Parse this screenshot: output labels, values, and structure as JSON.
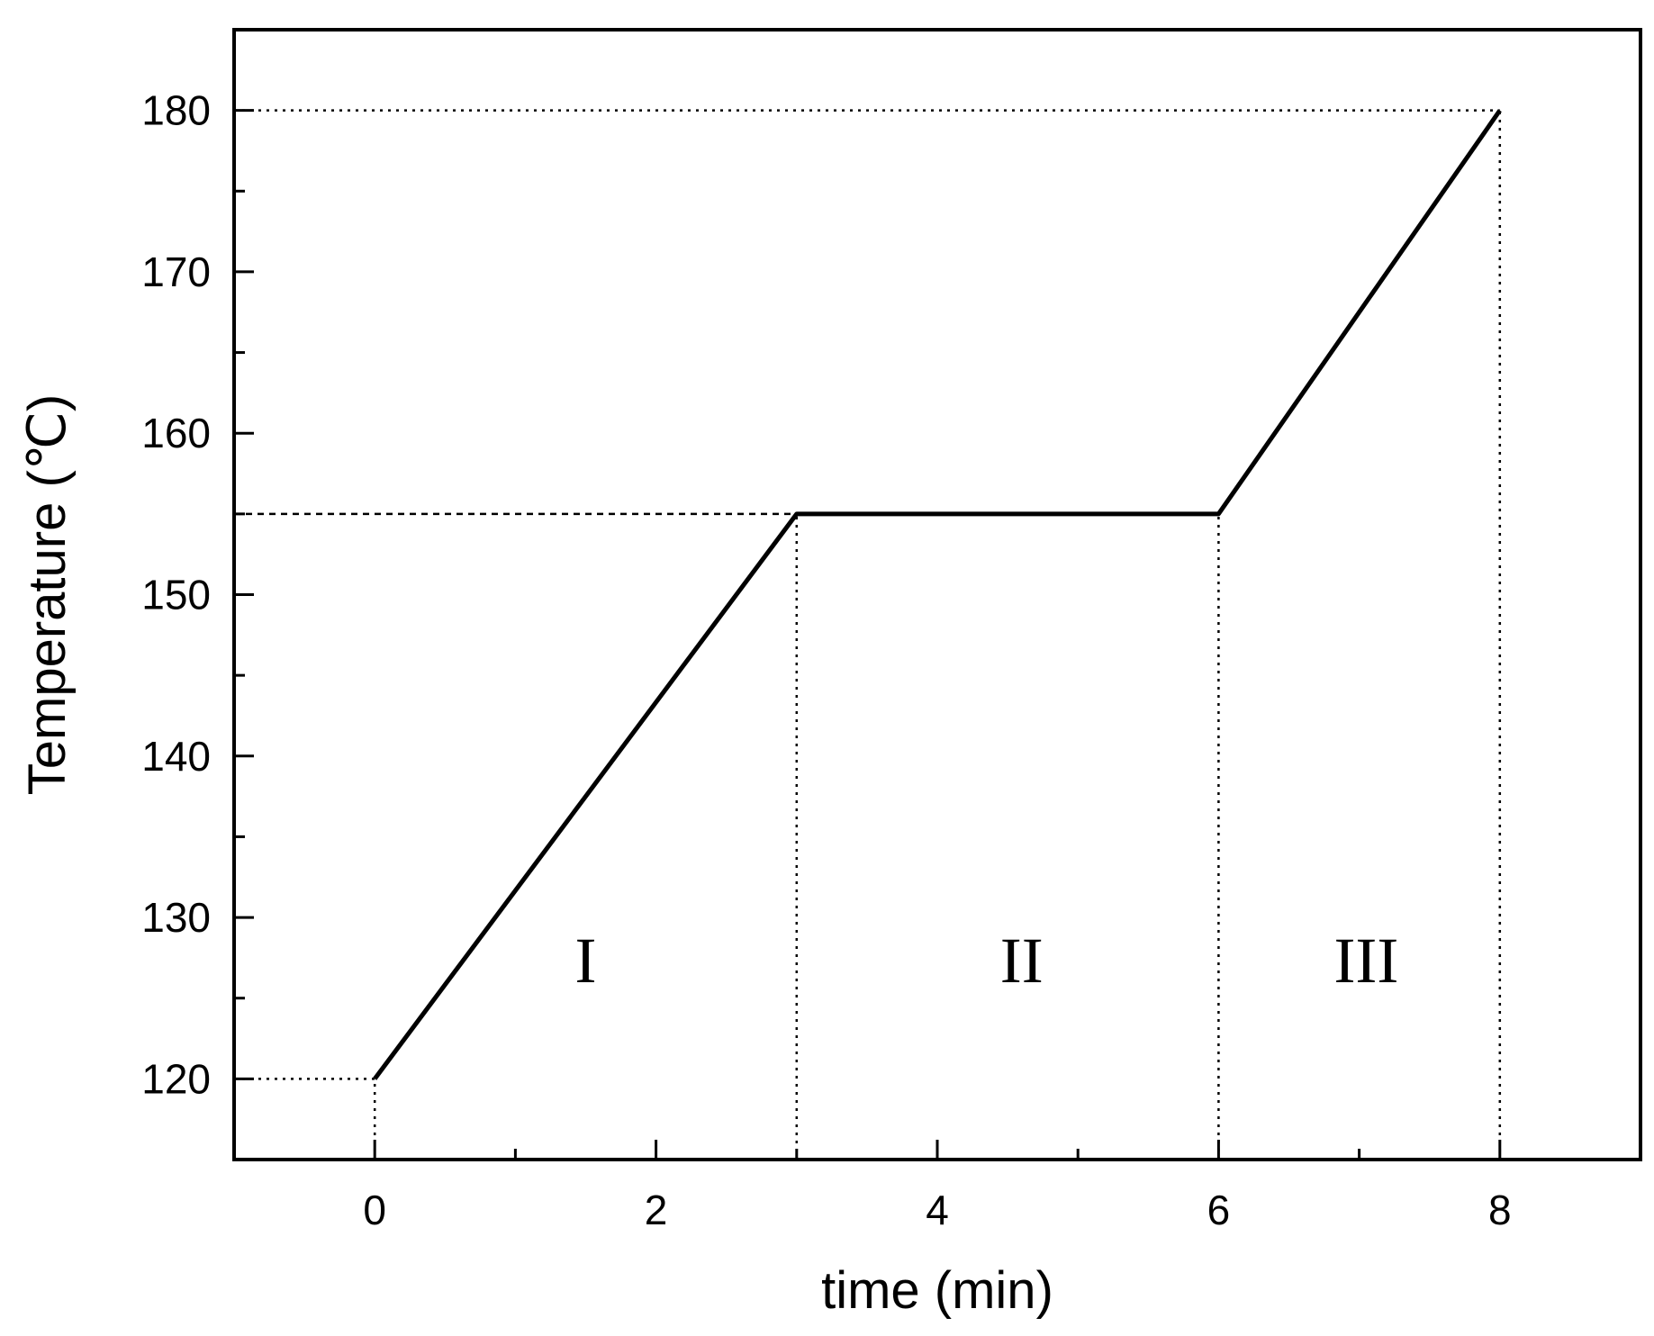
{
  "chart_data": {
    "type": "line",
    "title": "",
    "xlabel": "time (min)",
    "ylabel": "Temperature (℃)",
    "xlim": [
      -1,
      9
    ],
    "ylim": [
      115,
      185
    ],
    "x_ticks": [
      0,
      2,
      4,
      6,
      8
    ],
    "x_minor_ticks": [
      1,
      3,
      5,
      7
    ],
    "y_ticks": [
      120,
      130,
      140,
      150,
      160,
      170,
      180
    ],
    "y_minor_ticks": [
      125,
      135,
      145,
      155,
      165,
      175
    ],
    "grid": false,
    "legend": "none",
    "series": [
      {
        "x": [
          0,
          3,
          6,
          8
        ],
        "y": [
          120,
          155,
          155,
          180
        ],
        "color": "#000000"
      }
    ],
    "reference_lines": [
      {
        "style": "dotted",
        "from": [
          -1,
          120
        ],
        "to": [
          0,
          120
        ]
      },
      {
        "style": "dotted",
        "from": [
          0,
          115
        ],
        "to": [
          0,
          120
        ]
      },
      {
        "style": "dashed",
        "from": [
          -1,
          155
        ],
        "to": [
          3,
          155
        ]
      },
      {
        "style": "dotted",
        "from": [
          3,
          115
        ],
        "to": [
          3,
          155
        ]
      },
      {
        "style": "dotted",
        "from": [
          6,
          115
        ],
        "to": [
          6,
          155
        ]
      },
      {
        "style": "dotted",
        "from": [
          -1,
          180
        ],
        "to": [
          8,
          180
        ]
      },
      {
        "style": "dotted",
        "from": [
          8,
          115
        ],
        "to": [
          8,
          180
        ]
      }
    ],
    "annotations": [
      {
        "text": "I",
        "x": 1.5,
        "y": 126
      },
      {
        "text": "II",
        "x": 4.6,
        "y": 126
      },
      {
        "text": "III",
        "x": 7.05,
        "y": 126
      }
    ]
  }
}
